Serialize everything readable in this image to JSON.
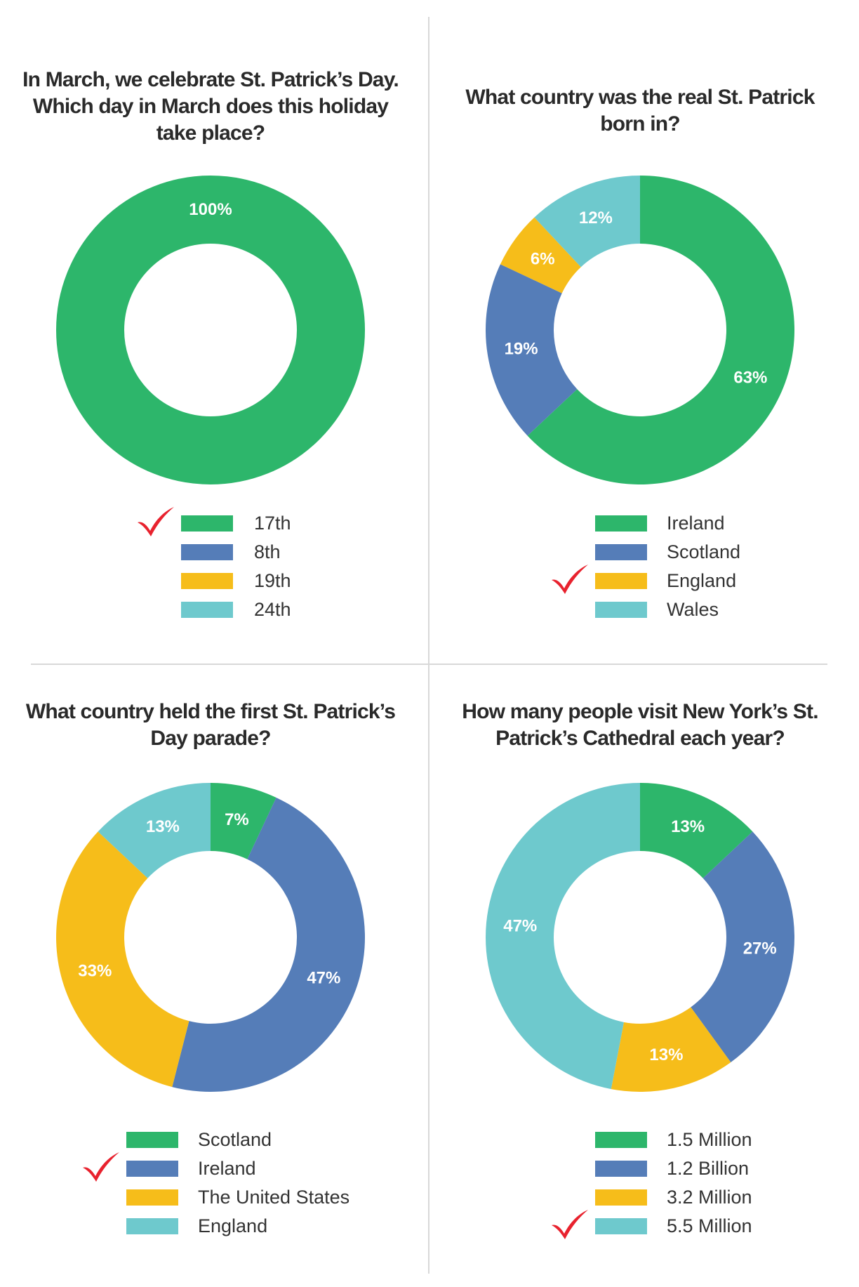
{
  "colors": {
    "green": "#2db66b",
    "blue": "#557db8",
    "yellow": "#f6bd1a",
    "teal": "#6ec9cd",
    "check": "#e8222e",
    "divider": "#d8d8d8",
    "text": "#2a2a2a"
  },
  "icons": {
    "correct_answer": "checkmark-icon"
  },
  "chart_data": [
    {
      "type": "pie",
      "style": "donut",
      "title": "In March, we celebrate St. Patrick’s Day. Which day in March does this holiday take place?",
      "categories": [
        "17th",
        "8th",
        "19th",
        "24th"
      ],
      "values": [
        100,
        0,
        0,
        0
      ],
      "labels": [
        "100%",
        "",
        "",
        ""
      ],
      "series_colors": [
        "#2db66b",
        "#557db8",
        "#f6bd1a",
        "#6ec9cd"
      ],
      "correct_answer": "17th",
      "legend": "bottom"
    },
    {
      "type": "pie",
      "style": "donut",
      "title": "What country was the real St. Patrick born in?",
      "categories": [
        "Ireland",
        "Scotland",
        "England",
        "Wales"
      ],
      "values": [
        63,
        19,
        6,
        12
      ],
      "labels": [
        "63%",
        "19%",
        "6%",
        "12%"
      ],
      "series_colors": [
        "#2db66b",
        "#557db8",
        "#f6bd1a",
        "#6ec9cd"
      ],
      "correct_answer": "England",
      "legend": "bottom"
    },
    {
      "type": "pie",
      "style": "donut",
      "title": "What country held the first St. Patrick’s Day parade?",
      "categories": [
        "Scotland",
        "Ireland",
        "The United States",
        "England"
      ],
      "values": [
        7,
        47,
        33,
        13
      ],
      "labels": [
        "7%",
        "47%",
        "33%",
        "13%"
      ],
      "series_colors": [
        "#2db66b",
        "#557db8",
        "#f6bd1a",
        "#6ec9cd"
      ],
      "correct_answer": "Ireland",
      "legend": "bottom"
    },
    {
      "type": "pie",
      "style": "donut",
      "title": "How many people visit New York’s St. Patrick’s Cathedral each year?",
      "categories": [
        "1.5 Million",
        "1.2 Billion",
        "3.2 Million",
        "5.5 Million"
      ],
      "values": [
        13,
        27,
        13,
        47
      ],
      "labels": [
        "13%",
        "27%",
        "13%",
        "47%"
      ],
      "series_colors": [
        "#2db66b",
        "#557db8",
        "#f6bd1a",
        "#6ec9cd"
      ],
      "correct_answer": "5.5 Million",
      "legend": "bottom"
    }
  ]
}
